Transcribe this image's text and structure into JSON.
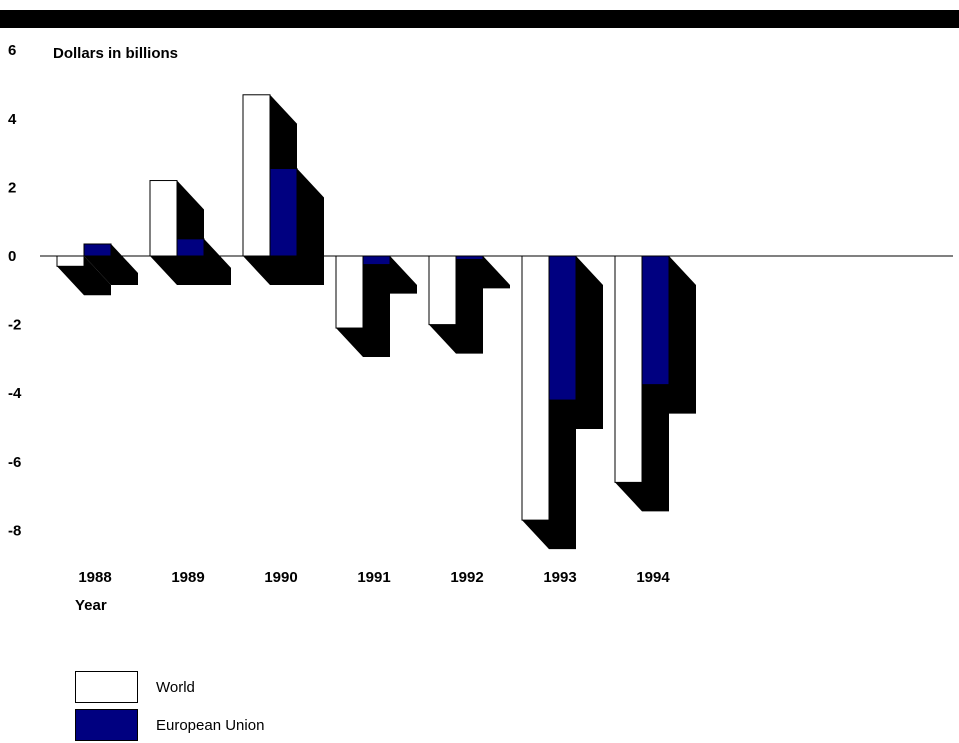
{
  "chart_data": {
    "type": "bar",
    "ylabel": "Dollars in billions",
    "xlabel": "Year",
    "ylim": [
      -8,
      6
    ],
    "yticks": [
      "6",
      "4",
      "2",
      "0",
      "-2",
      "-4",
      "-6",
      "-8"
    ],
    "categories": [
      "1988",
      "1989",
      "1990",
      "1991",
      "1992",
      "1993",
      "1994"
    ],
    "series": [
      {
        "name": "World",
        "values": [
          -0.3,
          2.2,
          4.7,
          -2.1,
          -2.0,
          -7.7,
          -6.6
        ],
        "color": "#ffffff"
      },
      {
        "name": "European Union",
        "values": [
          0.35,
          0.5,
          2.55,
          -0.25,
          -0.1,
          -4.2,
          -3.75
        ],
        "color": "#000080"
      }
    ],
    "style": "3d-shadowed-bars",
    "grid": false,
    "legend_position": "bottom-left"
  }
}
